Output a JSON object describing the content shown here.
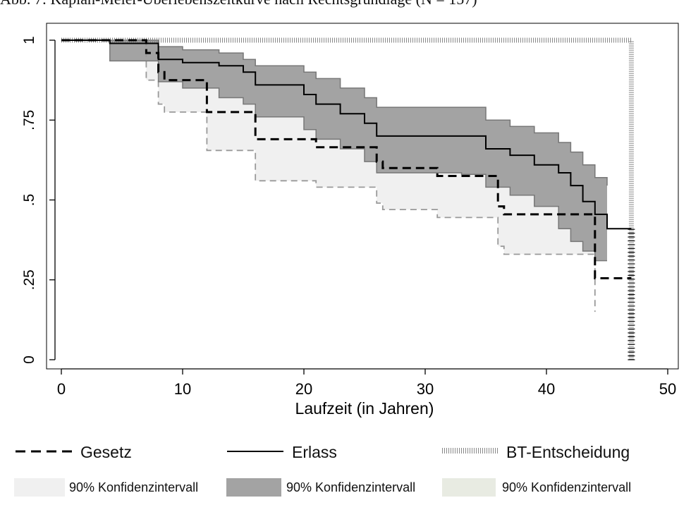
{
  "caption": "Abb. 7: Kaplan-Meier-Überlebenszeitkurve nach Rechtsgrundlage (N = 157)",
  "colors": {
    "gesetz": "#000000",
    "gesetz_ci_band": "#f0f0f0",
    "gesetz_ci_line": "#999999",
    "erlass": "#000000",
    "erlass_ci_band": "#a3a3a3",
    "erlass_ci_line": "#777777",
    "bt": "#888888",
    "bt_ci_band": "#e8ebe2"
  },
  "legend": {
    "gesetz": "Gesetz",
    "erlass": "Erlass",
    "bt": "BT-Entscheidung",
    "ci_gesetz": "90% Konfidenzintervall",
    "ci_erlass": "90% Konfidenzintervall",
    "ci_bt": "90% Konfidenzintervall"
  },
  "chart_data": {
    "type": "line",
    "xlabel": "Laufzeit (in Jahren)",
    "ylabel": "",
    "xlim": [
      0,
      50
    ],
    "ylim": [
      0,
      1
    ],
    "xticks": [
      0,
      10,
      20,
      30,
      40,
      50
    ],
    "yticks": [
      0,
      0.25,
      0.5,
      0.75,
      1
    ],
    "ytick_labels": [
      "0",
      ".25",
      ".5",
      ".75",
      "1"
    ],
    "grid": false,
    "legend_position": "bottom",
    "series": [
      {
        "name": "Gesetz",
        "style": "dashed",
        "x": [
          0,
          7,
          8,
          8.5,
          12,
          16,
          21,
          26,
          26.5,
          31,
          36,
          36.5,
          44,
          47
        ],
        "y": [
          1,
          0.96,
          0.9,
          0.875,
          0.775,
          0.69,
          0.665,
          0.62,
          0.6,
          0.575,
          0.48,
          0.455,
          0.255,
          0.255
        ]
      },
      {
        "name": "Gesetz CI lower",
        "style": "dashed",
        "x": [
          0,
          7,
          8,
          8.5,
          12,
          16,
          21,
          26,
          26.5,
          31,
          36,
          36.5,
          44
        ],
        "y": [
          1,
          0.875,
          0.8,
          0.775,
          0.655,
          0.56,
          0.54,
          0.49,
          0.47,
          0.445,
          0.355,
          0.33,
          0.15
        ]
      },
      {
        "name": "Gesetz CI upper",
        "style": "dashed",
        "x": [
          0,
          7,
          8,
          8.5,
          12,
          16,
          21,
          26,
          26.5,
          31,
          36,
          36.5,
          44
        ],
        "y": [
          1,
          1,
          0.97,
          0.955,
          0.875,
          0.8,
          0.78,
          0.74,
          0.72,
          0.7,
          0.61,
          0.59,
          0.4
        ]
      },
      {
        "name": "Erlass",
        "style": "solid",
        "x": [
          0,
          4,
          8,
          10,
          13,
          15,
          16,
          20,
          21,
          23,
          25,
          26,
          33,
          35,
          37,
          39,
          41,
          42,
          43,
          44,
          45,
          47
        ],
        "y": [
          1,
          0.99,
          0.94,
          0.93,
          0.92,
          0.9,
          0.86,
          0.83,
          0.8,
          0.77,
          0.74,
          0.7,
          0.7,
          0.66,
          0.64,
          0.61,
          0.585,
          0.545,
          0.495,
          0.455,
          0.41,
          0.41
        ]
      },
      {
        "name": "Erlass CI lower",
        "style": "solid",
        "x": [
          0,
          4,
          8,
          10,
          13,
          15,
          16,
          20,
          21,
          23,
          25,
          26,
          33,
          35,
          37,
          39,
          41,
          42,
          43,
          44,
          45
        ],
        "y": [
          1,
          0.935,
          0.87,
          0.85,
          0.82,
          0.8,
          0.76,
          0.72,
          0.69,
          0.66,
          0.62,
          0.585,
          0.58,
          0.54,
          0.515,
          0.48,
          0.41,
          0.37,
          0.34,
          0.31,
          0.31
        ]
      },
      {
        "name": "Erlass CI upper",
        "style": "solid",
        "x": [
          0,
          4,
          8,
          10,
          13,
          15,
          16,
          20,
          21,
          23,
          25,
          26,
          33,
          35,
          37,
          39,
          41,
          42,
          43,
          44,
          45
        ],
        "y": [
          1,
          1,
          0.98,
          0.97,
          0.96,
          0.94,
          0.92,
          0.9,
          0.88,
          0.85,
          0.82,
          0.79,
          0.79,
          0.75,
          0.73,
          0.71,
          0.68,
          0.65,
          0.61,
          0.57,
          0.545
        ]
      },
      {
        "name": "BT-Entscheidung",
        "style": "dotted",
        "x": [
          0,
          47,
          47
        ],
        "y": [
          1,
          1,
          0
        ]
      }
    ]
  }
}
